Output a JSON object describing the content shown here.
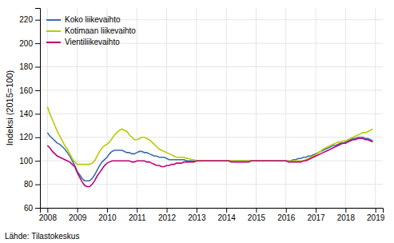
{
  "chart_data": {
    "type": "line",
    "ylabel": "Indeksi (2015=100)",
    "annotations": [
      "Lähde: Tilastokeskus"
    ],
    "xlim": [
      2007.75,
      2019.25
    ],
    "xticks": [
      2008,
      2009,
      2010,
      2011,
      2012,
      2013,
      2014,
      2015,
      2016,
      2017,
      2018,
      2019
    ],
    "ylim": [
      60,
      230
    ],
    "yticks": [
      60,
      80,
      100,
      120,
      140,
      160,
      180,
      200,
      220
    ],
    "grid": true,
    "legend": "upper left",
    "x": [
      2008,
      2008.0833333333,
      2008.1666666667,
      2008.25,
      2008.3333333333,
      2008.4166666667,
      2008.5,
      2008.5833333333,
      2008.6666666667,
      2008.75,
      2008.8333333333,
      2008.9166666667,
      2009,
      2009.0833333333,
      2009.1666666667,
      2009.25,
      2009.3333333333,
      2009.4166666667,
      2009.5,
      2009.5833333333,
      2009.6666666667,
      2009.75,
      2009.8333333333,
      2009.9166666667,
      2010,
      2010.0833333333,
      2010.1666666667,
      2010.25,
      2010.3333333333,
      2010.4166666667,
      2010.5,
      2010.5833333333,
      2010.6666666667,
      2010.75,
      2010.8333333333,
      2010.9166666667,
      2011,
      2011.0833333333,
      2011.1666666667,
      2011.25,
      2011.3333333333,
      2011.4166666667,
      2011.5,
      2011.5833333333,
      2011.6666666667,
      2011.75,
      2011.8333333333,
      2011.9166666667,
      2012,
      2012.0833333333,
      2012.1666666667,
      2012.25,
      2012.3333333333,
      2012.4166666667,
      2012.5,
      2012.5833333333,
      2012.6666666667,
      2012.75,
      2012.8333333333,
      2012.9166666667,
      2013,
      2013.0833333333,
      2013.1666666667,
      2013.25,
      2013.3333333333,
      2013.4166666667,
      2013.5,
      2013.5833333333,
      2013.6666666667,
      2013.75,
      2013.8333333333,
      2013.9166666667,
      2014,
      2014.0833333333,
      2014.1666666667,
      2014.25,
      2014.3333333333,
      2014.4166666667,
      2014.5,
      2014.5833333333,
      2014.6666666667,
      2014.75,
      2014.8333333333,
      2014.9166666667,
      2015,
      2015.0833333333,
      2015.1666666667,
      2015.25,
      2015.3333333333,
      2015.4166666667,
      2015.5,
      2015.5833333333,
      2015.6666666667,
      2015.75,
      2015.8333333333,
      2015.9166666667,
      2016,
      2016.0833333333,
      2016.1666666667,
      2016.25,
      2016.3333333333,
      2016.4166666667,
      2016.5,
      2016.5833333333,
      2016.6666666667,
      2016.75,
      2016.8333333333,
      2016.9166666667,
      2017,
      2017.0833333333,
      2017.1666666667,
      2017.25,
      2017.3333333333,
      2017.4166666667,
      2017.5,
      2017.5833333333,
      2017.6666666667,
      2017.75,
      2017.8333333333,
      2017.9166666667,
      2018,
      2018.0833333333,
      2018.1666666667,
      2018.25,
      2018.3333333333,
      2018.4166666667,
      2018.5,
      2018.5833333333,
      2018.6666666667,
      2018.75,
      2018.8333333333,
      2018.9166666667
    ],
    "series": [
      {
        "name": "Koko liikevaihto",
        "color": "#3a6ead",
        "values": [
          124,
          121,
          119,
          117,
          115,
          114,
          112,
          110,
          107,
          104,
          100,
          96,
          91,
          88,
          85,
          83,
          83,
          83,
          85,
          88,
          92,
          96,
          99,
          101,
          103,
          106,
          108,
          109,
          109,
          109,
          109,
          108,
          107,
          107,
          106,
          106,
          107,
          108,
          108,
          107,
          107,
          106,
          105,
          104,
          104,
          103,
          103,
          103,
          102,
          101,
          101,
          101,
          101,
          101,
          101,
          101,
          100,
          100,
          100,
          100,
          100,
          100,
          100,
          100,
          100,
          100,
          100,
          100,
          100,
          100,
          100,
          100,
          100,
          100,
          100,
          100,
          100,
          100,
          100,
          100,
          100,
          100,
          100,
          100,
          100,
          100,
          100,
          100,
          100,
          100,
          100,
          100,
          100,
          100,
          100,
          100,
          100,
          100,
          100,
          101,
          101,
          102,
          102,
          103,
          103,
          104,
          104,
          105,
          106,
          107,
          108,
          109,
          110,
          111,
          112,
          113,
          113,
          114,
          115,
          115,
          116,
          117,
          118,
          119,
          119,
          120,
          120,
          120,
          119,
          119,
          118,
          117
        ]
      },
      {
        "name": "Kotimaan liikevaihto",
        "color": "#b8cc00",
        "values": [
          146,
          140,
          135,
          130,
          125,
          121,
          117,
          113,
          110,
          106,
          102,
          99,
          97,
          97,
          97,
          97,
          97,
          97,
          98,
          100,
          104,
          108,
          111,
          113,
          114,
          116,
          119,
          122,
          124,
          126,
          127,
          126,
          125,
          122,
          120,
          118,
          118,
          119,
          120,
          120,
          119,
          118,
          116,
          114,
          112,
          110,
          109,
          108,
          107,
          106,
          105,
          104,
          103,
          103,
          103,
          103,
          102,
          102,
          101,
          101,
          100,
          100,
          100,
          100,
          100,
          100,
          100,
          100,
          100,
          100,
          100,
          100,
          100,
          100,
          100,
          100,
          100,
          100,
          100,
          100,
          100,
          100,
          100,
          100,
          100,
          100,
          100,
          100,
          100,
          100,
          100,
          100,
          100,
          100,
          100,
          100,
          100,
          100,
          100,
          100,
          100,
          100,
          100,
          100,
          101,
          102,
          103,
          104,
          105,
          107,
          108,
          110,
          111,
          112,
          113,
          114,
          115,
          116,
          116,
          117,
          117,
          118,
          119,
          120,
          121,
          122,
          123,
          124,
          124,
          125,
          126,
          127
        ]
      },
      {
        "name": "Vientiliikevaihto",
        "color": "#c0007a",
        "values": [
          113,
          111,
          108,
          106,
          104,
          103,
          102,
          101,
          100,
          99,
          97,
          95,
          90,
          86,
          82,
          79,
          78,
          78,
          80,
          83,
          87,
          90,
          93,
          96,
          98,
          99,
          100,
          100,
          100,
          100,
          100,
          100,
          100,
          100,
          99,
          99,
          100,
          100,
          100,
          100,
          99,
          99,
          98,
          97,
          96,
          96,
          95,
          95,
          96,
          96,
          97,
          97,
          98,
          98,
          98,
          99,
          99,
          99,
          99,
          99,
          100,
          100,
          100,
          100,
          100,
          100,
          100,
          100,
          100,
          100,
          100,
          100,
          100,
          100,
          99,
          99,
          99,
          99,
          99,
          99,
          99,
          99,
          100,
          100,
          100,
          100,
          100,
          100,
          100,
          100,
          100,
          100,
          100,
          100,
          100,
          100,
          100,
          99,
          99,
          99,
          99,
          99,
          99,
          100,
          100,
          101,
          102,
          103,
          104,
          105,
          106,
          107,
          108,
          109,
          110,
          111,
          112,
          113,
          114,
          115,
          115,
          116,
          117,
          118,
          118,
          119,
          119,
          119,
          118,
          118,
          117,
          116
        ]
      }
    ]
  }
}
